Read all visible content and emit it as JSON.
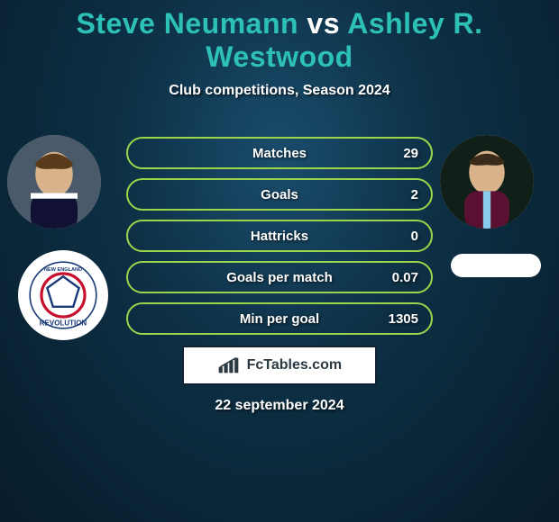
{
  "title": {
    "player1": "Steve Neumann",
    "vs": "vs",
    "player2": "Ashley R. Westwood",
    "color_p1": "#2dc0b6",
    "color_vs": "#ffffff",
    "color_p2": "#2dc0b6"
  },
  "subtitle": "Club competitions, Season 2024",
  "date": "22 september 2024",
  "brand": "FcTables.com",
  "bar_border_color": "#9bd64a",
  "stats": [
    {
      "label": "Matches",
      "value": "29"
    },
    {
      "label": "Goals",
      "value": "2"
    },
    {
      "label": "Hattricks",
      "value": "0"
    },
    {
      "label": "Goals per match",
      "value": "0.07"
    },
    {
      "label": "Min per goal",
      "value": "1305"
    }
  ],
  "players": {
    "left": {
      "name": "Steve Neumann",
      "club": "New England Revolution"
    },
    "right": {
      "name": "Ashley R. Westwood",
      "club": ""
    }
  }
}
